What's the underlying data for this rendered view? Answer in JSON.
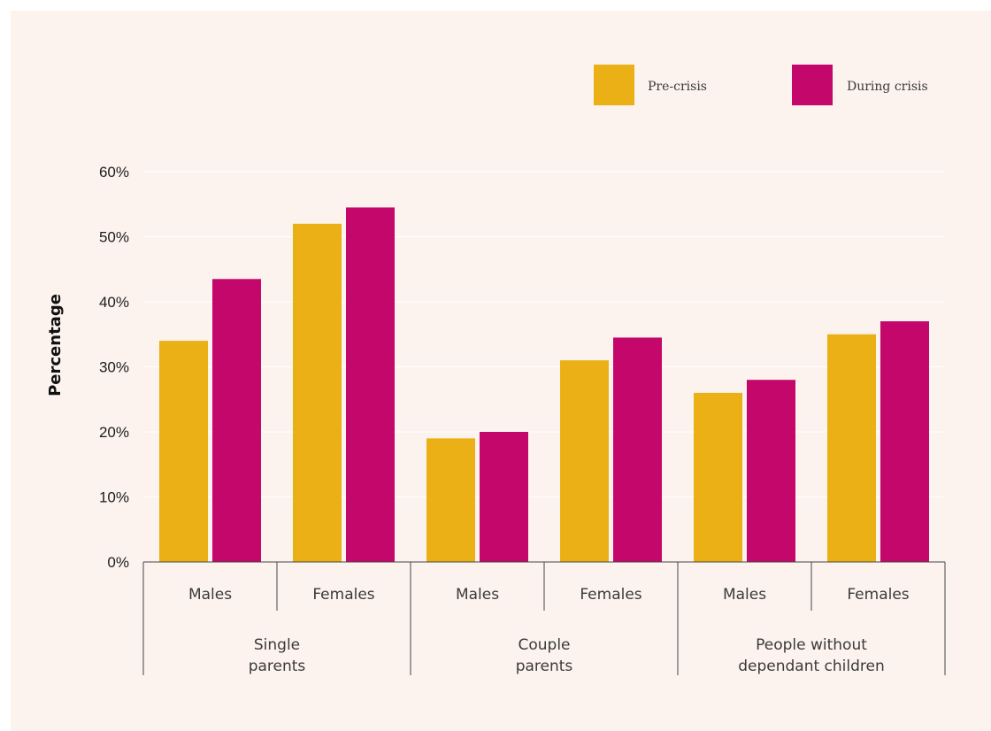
{
  "chart_data": {
    "type": "bar",
    "title": "",
    "xlabel": "",
    "ylabel": "Percentage",
    "ylim": [
      0,
      60
    ],
    "yticks": [
      "0%",
      "10%",
      "20%",
      "30%",
      "40%",
      "50%",
      "60%"
    ],
    "grid": true,
    "legend_position": "top-right",
    "groups": [
      {
        "label": [
          "Single",
          "parents"
        ],
        "categories": [
          "Males",
          "Females"
        ]
      },
      {
        "label": [
          "Couple",
          "parents"
        ],
        "categories": [
          "Males",
          "Females"
        ]
      },
      {
        "label": [
          "People without",
          "dependant children"
        ],
        "categories": [
          "Males",
          "Females"
        ]
      }
    ],
    "series": [
      {
        "name": "Pre-crisis",
        "color": "#ebb015",
        "values": [
          34,
          52,
          19,
          31,
          26,
          35
        ]
      },
      {
        "name": "During crisis",
        "color": "#c4086b",
        "values": [
          43.5,
          54.5,
          20,
          34.5,
          28,
          37
        ]
      }
    ]
  },
  "colors": {
    "background": "#fcf3ee",
    "gridline": "#ffffff",
    "axis": "#444444"
  }
}
